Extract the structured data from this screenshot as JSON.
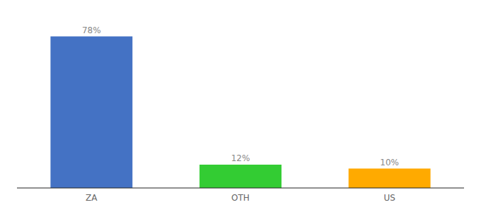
{
  "chart_data": {
    "type": "bar",
    "categories": [
      "ZA",
      "OTH",
      "US"
    ],
    "values": [
      78,
      12,
      10
    ],
    "value_labels": [
      "78%",
      "12%",
      "10%"
    ],
    "colors": [
      "#4472c4",
      "#33cc33",
      "#ffaa00"
    ],
    "ylim": [
      0,
      88
    ],
    "data_labels": true,
    "tick_labels": "x"
  }
}
